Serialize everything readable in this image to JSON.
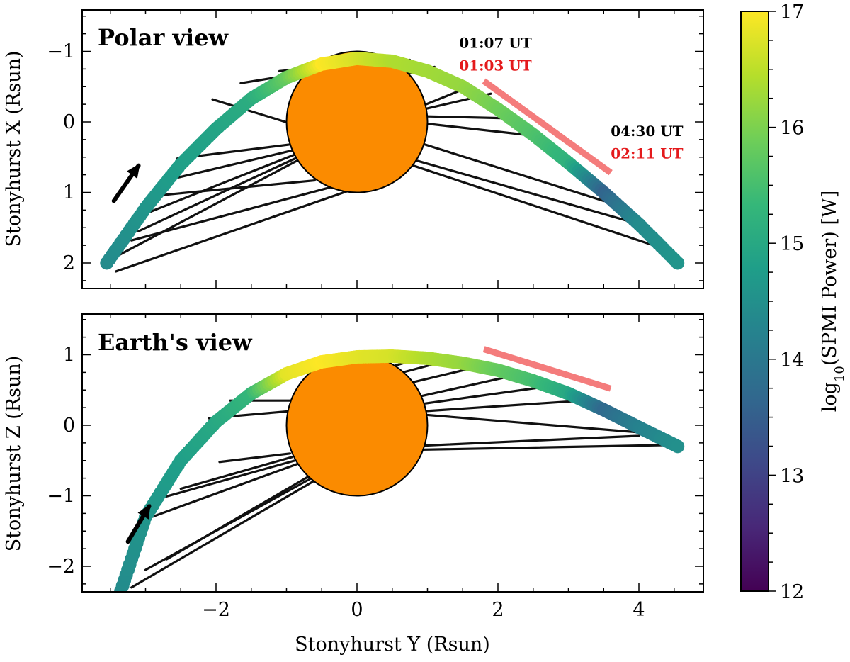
{
  "chart_data": [
    {
      "type": "line",
      "title": "Polar view",
      "xlabel": "",
      "ylabel": "Stonyhurst X (Rsun)",
      "xlim": [
        -4.0,
        5.0
      ],
      "ylim": [
        2.35,
        -1.6
      ],
      "y_inverted": true,
      "xticks": [
        -2,
        0,
        2,
        4
      ],
      "xtick_labels": [],
      "yticks": [
        -1,
        0,
        1,
        2
      ],
      "ytick_labels": [
        "−1",
        "0",
        "1",
        "2"
      ],
      "sun_radius": 1.0,
      "sun_color": "#fb8b00",
      "trajectory": {
        "x": [
          -3.55,
          -3.0,
          -2.5,
          -2.0,
          -1.5,
          -1.0,
          -0.5,
          0.0,
          0.5,
          1.0,
          1.5,
          2.0,
          2.5,
          3.0,
          3.5,
          4.0,
          4.55
        ],
        "y": [
          2.0,
          1.22,
          0.6,
          0.1,
          -0.33,
          -0.63,
          -0.82,
          -0.9,
          -0.86,
          -0.72,
          -0.5,
          -0.18,
          0.18,
          0.58,
          1.0,
          1.45,
          2.0
        ],
        "log10_power": [
          14.4,
          14.6,
          14.8,
          14.9,
          15.1,
          15.8,
          17.0,
          16.7,
          16.4,
          16.3,
          16.2,
          15.9,
          15.6,
          15.2,
          13.6,
          14.4,
          14.6
        ]
      },
      "arrow": {
        "from": [
          -3.45,
          1.12
        ],
        "to": [
          -3.1,
          0.62
        ]
      },
      "red_segment": {
        "x": [
          1.8,
          3.6
        ],
        "y": [
          -0.58,
          0.72
        ]
      },
      "annotations": [
        {
          "text": "01:07 UT",
          "color": "#000000",
          "x": 1.45,
          "y": -1.05
        },
        {
          "text": "01:03 UT",
          "color": "#e41a1c",
          "x": 1.45,
          "y": -0.73
        },
        {
          "text": "04:30 UT",
          "color": "#000000",
          "x": 3.6,
          "y": 0.2
        },
        {
          "text": "02:11 UT",
          "color": "#e41a1c",
          "x": 3.6,
          "y": 0.52
        }
      ],
      "field_lines_left": {
        "foot": [
          [
            -0.95,
            0.02
          ],
          [
            -0.95,
            0.32
          ],
          [
            -0.9,
            0.4
          ],
          [
            -0.9,
            0.47
          ],
          [
            -0.88,
            0.52
          ],
          [
            -0.85,
            0.55
          ],
          [
            -0.6,
            0.83
          ],
          [
            -0.2,
            0.88
          ],
          [
            0.1,
            0.9
          ],
          [
            -0.6,
            -0.72
          ],
          [
            -0.3,
            -0.8
          ]
        ],
        "end": [
          [
            -2.05,
            -0.32
          ],
          [
            -2.55,
            0.52
          ],
          [
            -2.8,
            0.85
          ],
          [
            -3.05,
            1.32
          ],
          [
            -3.1,
            1.55
          ],
          [
            -3.4,
            1.9
          ],
          [
            -2.9,
            1.05
          ],
          [
            -3.2,
            1.68
          ],
          [
            -3.42,
            2.12
          ],
          [
            -1.65,
            -0.55
          ],
          [
            -1.1,
            -0.72
          ]
        ]
      },
      "field_lines_right": {
        "foot": [
          [
            0.95,
            -0.18
          ],
          [
            0.95,
            -0.08
          ],
          [
            0.95,
            0.02
          ],
          [
            0.98,
            -0.25
          ],
          [
            0.9,
            0.3
          ],
          [
            0.85,
            0.55
          ],
          [
            0.8,
            0.62
          ],
          [
            0.6,
            -0.65
          ],
          [
            0.3,
            -0.8
          ]
        ],
        "end": [
          [
            1.9,
            -0.4
          ],
          [
            2.2,
            -0.05
          ],
          [
            2.55,
            0.2
          ],
          [
            1.6,
            -0.5
          ],
          [
            3.5,
            1.12
          ],
          [
            3.9,
            1.42
          ],
          [
            4.3,
            1.78
          ],
          [
            1.1,
            -0.78
          ],
          [
            0.75,
            -0.88
          ]
        ]
      }
    },
    {
      "type": "line",
      "title": "Earth's view",
      "xlabel": "Stonyhurst Y (Rsun)",
      "ylabel": "Stonyhurst Z (Rsun)",
      "xlim": [
        -4.0,
        5.0
      ],
      "ylim": [
        1.5,
        -2.35
      ],
      "y_inverted": false,
      "xticks": [
        -2,
        0,
        2,
        4
      ],
      "xtick_labels": [
        "−2",
        "0",
        "2",
        "4"
      ],
      "yticks": [
        1,
        0,
        -1,
        -2
      ],
      "ytick_labels": [
        "1",
        "0",
        "−1",
        "−2"
      ],
      "sun_radius": 1.0,
      "sun_color": "#fb8b00",
      "trajectory": {
        "x": [
          -3.35,
          -3.0,
          -2.5,
          -2.0,
          -1.5,
          -1.0,
          -0.5,
          0.0,
          0.5,
          1.0,
          1.5,
          2.0,
          2.5,
          3.0,
          3.5,
          4.0,
          4.55
        ],
        "y": [
          -2.35,
          -1.3,
          -0.5,
          0.05,
          0.45,
          0.73,
          0.9,
          0.97,
          0.98,
          0.95,
          0.88,
          0.78,
          0.63,
          0.45,
          0.22,
          -0.03,
          -0.3
        ],
        "log10_power": [
          14.4,
          14.6,
          14.8,
          15.0,
          15.3,
          16.8,
          17.0,
          16.8,
          16.7,
          16.4,
          16.2,
          15.8,
          15.5,
          15.0,
          13.7,
          14.2,
          14.5
        ]
      },
      "arrow": {
        "from": [
          -3.25,
          -1.65
        ],
        "to": [
          -2.95,
          -1.15
        ]
      },
      "red_segment": {
        "x": [
          1.8,
          3.6
        ],
        "y": [
          1.08,
          0.52
        ]
      },
      "annotations": [],
      "field_lines_left": {
        "foot": [
          [
            -0.95,
            -0.4
          ],
          [
            -0.92,
            -0.45
          ],
          [
            -0.88,
            -0.5
          ],
          [
            -0.85,
            -0.55
          ],
          [
            -0.3,
            -0.5
          ],
          [
            -0.25,
            -0.53
          ],
          [
            -0.2,
            -0.55
          ],
          [
            -0.85,
            0.35
          ],
          [
            -0.95,
            0.2
          ]
        ],
        "end": [
          [
            -1.95,
            -0.52
          ],
          [
            -2.5,
            -0.9
          ],
          [
            -2.85,
            -1.05
          ],
          [
            -3.05,
            -1.35
          ],
          [
            -2.7,
            -1.9
          ],
          [
            -3.0,
            -2.05
          ],
          [
            -3.2,
            -2.3
          ],
          [
            -1.8,
            0.35
          ],
          [
            -2.1,
            0.1
          ]
        ]
      },
      "field_lines_right": {
        "foot": [
          [
            0.95,
            0.15
          ],
          [
            0.95,
            0.2
          ],
          [
            0.9,
            0.3
          ],
          [
            0.85,
            0.4
          ],
          [
            0.75,
            0.6
          ],
          [
            0.65,
            0.75
          ],
          [
            0.55,
            0.85
          ],
          [
            0.7,
            -0.35
          ],
          [
            0.68,
            -0.3
          ]
        ],
        "end": [
          [
            4.0,
            -0.1
          ],
          [
            3.2,
            0.35
          ],
          [
            2.7,
            0.55
          ],
          [
            2.2,
            0.7
          ],
          [
            1.8,
            0.85
          ],
          [
            1.4,
            0.95
          ],
          [
            1.0,
            0.98
          ],
          [
            4.4,
            -0.28
          ],
          [
            4.0,
            -0.15
          ]
        ]
      }
    },
    {
      "type": "colorbar",
      "label": "log10(SPMI Power) [W]",
      "label_base": "log",
      "label_sub": "10",
      "label_rest": "(SPMI Power) [W]",
      "vmin": 12,
      "vmax": 17,
      "ticks": [
        12,
        13,
        14,
        15,
        16,
        17
      ],
      "tick_labels": [
        "12",
        "13",
        "14",
        "15",
        "16",
        "17"
      ],
      "colormap": "viridis",
      "stops": [
        "#440154",
        "#482878",
        "#3e4989",
        "#31688e",
        "#26828e",
        "#1f9e89",
        "#35b779",
        "#6ece58",
        "#b5de2b",
        "#fde725"
      ]
    }
  ]
}
